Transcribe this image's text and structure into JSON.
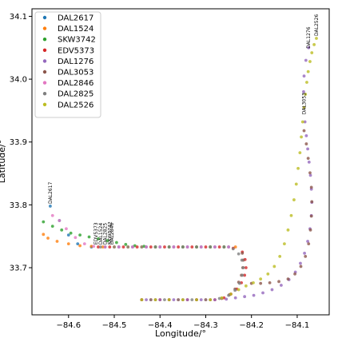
{
  "chart_data": {
    "type": "scatter",
    "title": "",
    "xlabel": "Longitude/°",
    "ylabel": "Latitude/°",
    "xlim": [
      -84.68,
      -84.03
    ],
    "ylim": [
      33.625,
      34.112
    ],
    "xticks": [
      -84.6,
      -84.5,
      -84.4,
      -84.3,
      -84.2,
      -84.1
    ],
    "xtick_labels": [
      "−84.6",
      "−84.5",
      "−84.4",
      "−84.3",
      "−84.2",
      "−84.1"
    ],
    "yticks": [
      33.7,
      33.8,
      33.9,
      34.0,
      34.1
    ],
    "ytick_labels": [
      "33.7",
      "33.8",
      "33.9",
      "34.0",
      "34.1"
    ],
    "grid": false,
    "legend_position": "upper-left",
    "series": [
      {
        "name": "DAL2617",
        "color": "#1f77b4",
        "x": [
          -84.64,
          -84.62,
          -84.6,
          -84.58,
          -84.55,
          -84.52,
          -84.49,
          -84.46,
          -84.43,
          -84.4,
          -84.37,
          -84.34,
          -84.31,
          -84.28,
          -84.25
        ],
        "y": [
          33.798,
          33.775,
          33.752,
          33.738,
          33.733,
          33.733,
          33.733,
          33.733,
          33.733,
          33.733,
          33.733,
          33.733,
          33.733,
          33.733,
          33.733
        ]
      },
      {
        "name": "DAL1524",
        "color": "#ff7f0e",
        "x": [
          -84.655,
          -84.645,
          -84.625,
          -84.6,
          -84.575,
          -84.55,
          -84.525,
          -84.5,
          -84.47,
          -84.44,
          -84.41,
          -84.38,
          -84.35,
          -84.32,
          -84.29,
          -84.26,
          -84.235
        ],
        "y": [
          33.753,
          33.747,
          33.742,
          33.738,
          33.735,
          33.734,
          33.733,
          33.733,
          33.733,
          33.733,
          33.733,
          33.733,
          33.733,
          33.733,
          33.733,
          33.733,
          33.733
        ]
      },
      {
        "name": "SKW3742",
        "color": "#2ca02c",
        "x": [
          -84.655,
          -84.635,
          -84.615,
          -84.595,
          -84.575,
          -84.555,
          -84.535,
          -84.515,
          -84.495,
          -84.475,
          -84.455,
          -84.435,
          -84.41,
          -84.38,
          -84.35,
          -84.32,
          -84.29,
          -84.26
        ],
        "y": [
          33.773,
          33.766,
          33.76,
          33.755,
          33.752,
          33.749,
          33.746,
          33.743,
          33.74,
          33.737,
          33.735,
          33.734,
          33.733,
          33.733,
          33.733,
          33.733,
          33.733,
          33.733
        ]
      },
      {
        "name": "EDV5373",
        "color": "#d62728",
        "x": [
          -84.44,
          -84.42,
          -84.4,
          -84.38,
          -84.36,
          -84.34,
          -84.32,
          -84.3,
          -84.28,
          -84.26,
          -84.245,
          -84.232,
          -84.222,
          -84.215,
          -84.212,
          -84.214,
          -84.22,
          -84.24,
          -84.27,
          -84.3,
          -84.33,
          -84.36,
          -84.39,
          -84.42,
          -84.45,
          -84.48,
          -84.51,
          -84.535
        ],
        "y": [
          33.649,
          33.649,
          33.649,
          33.649,
          33.649,
          33.649,
          33.649,
          33.649,
          33.649,
          33.652,
          33.658,
          33.666,
          33.676,
          33.688,
          33.7,
          33.713,
          33.725,
          33.731,
          33.733,
          33.733,
          33.733,
          33.733,
          33.733,
          33.733,
          33.733,
          33.733,
          33.733,
          33.733
        ]
      },
      {
        "name": "DAL1276",
        "color": "#9467bd",
        "x": [
          -84.43,
          -84.4,
          -84.37,
          -84.34,
          -84.31,
          -84.28,
          -84.255,
          -84.235,
          -84.215,
          -84.195,
          -84.175,
          -84.155,
          -84.135,
          -84.118,
          -84.104,
          -84.093,
          -84.084,
          -84.077,
          -84.072,
          -84.069,
          -84.068,
          -84.069,
          -84.071,
          -84.074,
          -84.077,
          -84.08,
          -84.083,
          -84.085,
          -84.086,
          -84.085,
          -84.081,
          -84.075
        ],
        "y": [
          33.649,
          33.649,
          33.649,
          33.649,
          33.649,
          33.649,
          33.65,
          33.652,
          33.654,
          33.656,
          33.66,
          33.665,
          33.672,
          33.681,
          33.693,
          33.707,
          33.723,
          33.742,
          33.762,
          33.783,
          33.804,
          33.825,
          33.847,
          33.868,
          33.889,
          33.91,
          33.932,
          33.955,
          33.98,
          34.005,
          34.03,
          34.05
        ]
      },
      {
        "name": "DAL3053",
        "color": "#8c564b",
        "x": [
          -84.44,
          -84.41,
          -84.38,
          -84.35,
          -84.32,
          -84.29,
          -84.265,
          -84.248,
          -84.236,
          -84.228,
          -84.222,
          -84.219,
          -84.218,
          -84.22,
          -84.2,
          -84.18,
          -84.16,
          -84.14,
          -84.12,
          -84.105,
          -84.092,
          -84.082,
          -84.075,
          -84.071,
          -84.069,
          -84.068,
          -84.069,
          -84.072,
          -84.076,
          -84.08,
          -84.085
        ],
        "y": [
          33.649,
          33.649,
          33.649,
          33.649,
          33.649,
          33.649,
          33.651,
          33.657,
          33.666,
          33.677,
          33.688,
          33.7,
          33.712,
          33.723,
          33.675,
          33.675,
          33.676,
          33.678,
          33.682,
          33.69,
          33.702,
          33.718,
          33.738,
          33.76,
          33.782,
          33.805,
          33.828,
          33.851,
          33.874,
          33.897,
          33.918
        ]
      },
      {
        "name": "DAL2846",
        "color": "#e377c2",
        "x": [
          -84.635,
          -84.62,
          -84.605,
          -84.585,
          -84.565,
          -84.545,
          -84.52,
          -84.49,
          -84.46,
          -84.43,
          -84.4,
          -84.37,
          -84.34,
          -84.31,
          -84.28,
          -84.25
        ],
        "y": [
          33.783,
          33.775,
          33.762,
          33.748,
          33.738,
          33.734,
          33.733,
          33.733,
          33.733,
          33.733,
          33.733,
          33.733,
          33.733,
          33.733,
          33.733,
          33.733
        ]
      },
      {
        "name": "DAL2825",
        "color": "#7f7f7f",
        "x": [
          -84.42,
          -84.39,
          -84.36,
          -84.33,
          -84.3,
          -84.27,
          -84.25,
          -84.236,
          -84.226,
          -84.22,
          -84.218,
          -84.221,
          -84.228,
          -84.24,
          -84.26,
          -84.29,
          -84.32,
          -84.35,
          -84.38,
          -84.41,
          -84.44,
          -84.47,
          -84.5,
          -84.53
        ],
        "y": [
          33.649,
          33.649,
          33.649,
          33.649,
          33.649,
          33.651,
          33.656,
          33.664,
          33.675,
          33.688,
          33.7,
          33.712,
          33.722,
          33.73,
          33.733,
          33.733,
          33.733,
          33.733,
          33.733,
          33.733,
          33.733,
          33.733,
          33.733,
          33.733
        ]
      },
      {
        "name": "DAL2526",
        "color": "#bcbd22",
        "x": [
          -84.44,
          -84.41,
          -84.38,
          -84.35,
          -84.32,
          -84.29,
          -84.265,
          -84.245,
          -84.228,
          -84.212,
          -84.196,
          -84.18,
          -84.164,
          -84.15,
          -84.138,
          -84.128,
          -84.12,
          -84.113,
          -84.107,
          -84.102,
          -84.098,
          -84.094,
          -84.091,
          -84.088,
          -84.085,
          -84.082,
          -84.079,
          -84.076,
          -84.072,
          -84.068,
          -84.063,
          -84.058
        ],
        "y": [
          33.649,
          33.649,
          33.649,
          33.649,
          33.649,
          33.649,
          33.652,
          33.658,
          33.665,
          33.671,
          33.676,
          33.682,
          33.69,
          33.702,
          33.718,
          33.738,
          33.76,
          33.783,
          33.808,
          33.833,
          33.858,
          33.883,
          33.908,
          33.932,
          33.955,
          33.976,
          33.995,
          34.012,
          34.028,
          34.042,
          34.055,
          34.065
        ]
      }
    ],
    "annotations": [
      {
        "text": "DAL2617",
        "x": -84.64,
        "y": 33.798
      },
      {
        "text": "EDV5373",
        "x": -84.54,
        "y": 33.733
      },
      {
        "text": "DAL1524",
        "x": -84.53,
        "y": 33.733
      },
      {
        "text": "DAL2825",
        "x": -84.52,
        "y": 33.733
      },
      {
        "text": "SKW3742",
        "x": -84.51,
        "y": 33.733
      },
      {
        "text": "DAL2846",
        "x": -84.505,
        "y": 33.733
      },
      {
        "text": "DAL3053",
        "x": -84.085,
        "y": 33.94
      },
      {
        "text": "DAL1276",
        "x": -84.075,
        "y": 34.045
      },
      {
        "text": "DAL2526",
        "x": -84.058,
        "y": 34.065
      }
    ]
  }
}
